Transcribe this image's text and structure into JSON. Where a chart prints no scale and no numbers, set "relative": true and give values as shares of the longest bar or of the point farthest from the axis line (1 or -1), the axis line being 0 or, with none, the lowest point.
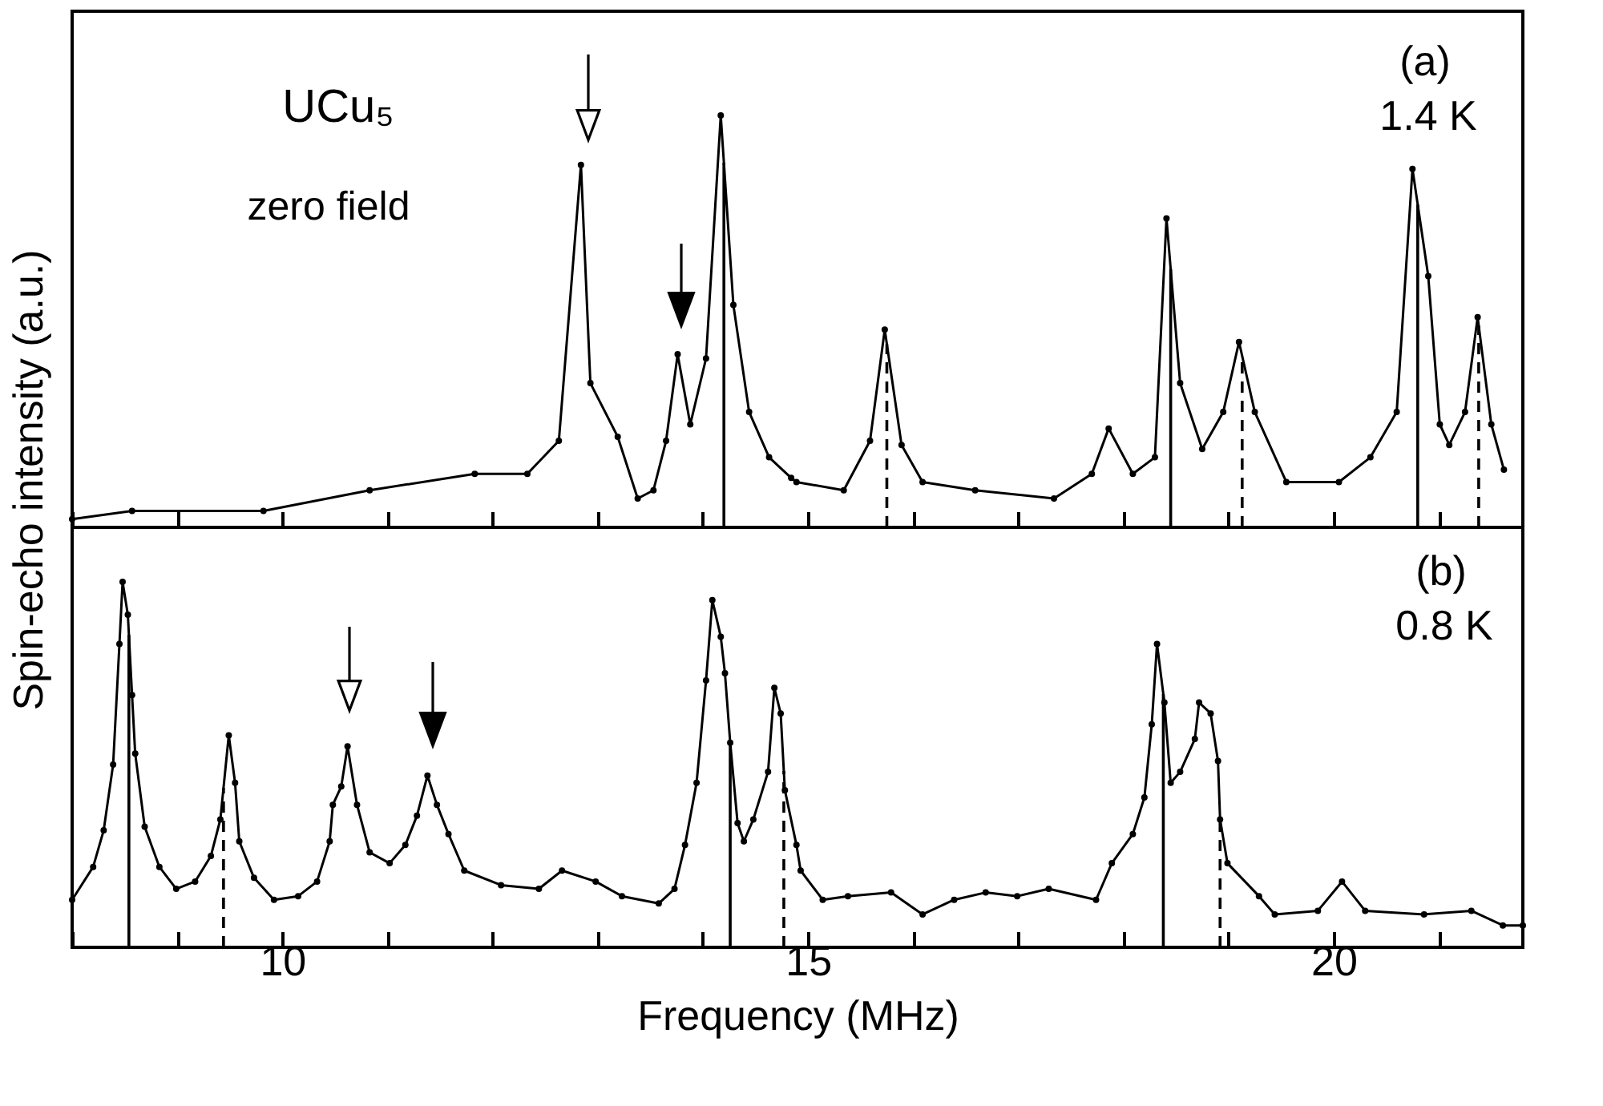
{
  "chart_data": [
    {
      "type": "line",
      "relative": true,
      "ylabel": "Spin-echo intensity (a.u.)",
      "marker": "circle",
      "tick_labels": false,
      "xlim": [
        8,
        21.8
      ],
      "xticks": [
        {
          "value": 8,
          "label": null
        },
        {
          "value": 9,
          "label": null
        },
        10,
        {
          "value": 11,
          "label": null
        },
        {
          "value": 12,
          "label": null
        },
        {
          "value": 13,
          "label": null
        },
        {
          "value": 14,
          "label": null
        },
        15,
        {
          "value": 16,
          "label": null
        },
        {
          "value": 17,
          "label": null
        },
        {
          "value": 18,
          "label": null
        },
        {
          "value": 19,
          "label": null
        },
        20,
        {
          "value": 21,
          "label": null
        }
      ],
      "annotations": [
        "UCu₅",
        "zero field",
        "(a)",
        "1.4 K"
      ],
      "series": [
        {
          "color": "#000000",
          "x": [
            8.0,
            8.57,
            9.82,
            10.83,
            11.83,
            12.33,
            12.63,
            12.84,
            12.93,
            13.19,
            13.38,
            13.53,
            13.65,
            13.76,
            13.88,
            14.03,
            14.17,
            14.29,
            14.44,
            14.63,
            14.84,
            14.89,
            15.34,
            15.59,
            15.73,
            15.89,
            16.09,
            16.59,
            17.34,
            17.7,
            17.86,
            18.09,
            18.3,
            18.41,
            18.54,
            18.75,
            18.95,
            19.1,
            19.25,
            19.55,
            20.05,
            20.35,
            20.6,
            20.75,
            20.9,
            21.01,
            21.1,
            21.25,
            21.37,
            21.5,
            21.62
          ],
          "values": [
            0.02,
            0.04,
            0.04,
            0.09,
            0.13,
            0.13,
            0.21,
            0.88,
            0.35,
            0.22,
            0.07,
            0.09,
            0.21,
            0.42,
            0.25,
            0.41,
            1.0,
            0.54,
            0.28,
            0.17,
            0.12,
            0.11,
            0.09,
            0.21,
            0.48,
            0.2,
            0.11,
            0.09,
            0.07,
            0.13,
            0.24,
            0.13,
            0.17,
            0.75,
            0.35,
            0.19,
            0.28,
            0.45,
            0.28,
            0.11,
            0.11,
            0.17,
            0.28,
            0.87,
            0.61,
            0.25,
            0.2,
            0.28,
            0.51,
            0.25,
            0.14
          ]
        }
      ],
      "ref_lines": [
        {
          "axis": "x",
          "value": 14.2,
          "line_style": "solid"
        },
        {
          "axis": "x",
          "value": 15.75,
          "line_style": "dashed"
        },
        {
          "axis": "x",
          "value": 18.45,
          "line_style": "solid"
        },
        {
          "axis": "x",
          "value": 19.13,
          "line_style": "dashed"
        },
        {
          "axis": "x",
          "value": 20.8,
          "line_style": "solid"
        },
        {
          "axis": "x",
          "value": 21.38,
          "line_style": "dashed"
        }
      ]
    },
    {
      "type": "line",
      "relative": true,
      "xlabel": "Frequency (MHz)",
      "marker": "circle",
      "tick_labels": "x",
      "xlim": [
        8,
        21.8
      ],
      "xticks": [
        {
          "value": 8,
          "label": null
        },
        {
          "value": 9,
          "label": null
        },
        10,
        {
          "value": 11,
          "label": null
        },
        {
          "value": 12,
          "label": null
        },
        {
          "value": 13,
          "label": null
        },
        {
          "value": 14,
          "label": null
        },
        15,
        {
          "value": 16,
          "label": null
        },
        {
          "value": 17,
          "label": null
        },
        {
          "value": 18,
          "label": null
        },
        {
          "value": 19,
          "label": null
        },
        20,
        {
          "value": 21,
          "label": null
        }
      ],
      "annotations": [
        "(b)",
        "0.8 K"
      ],
      "series": [
        {
          "color": "#000000",
          "x": [
            8.0,
            8.2,
            8.3,
            8.39,
            8.45,
            8.48,
            8.53,
            8.57,
            8.6,
            8.69,
            8.83,
            8.99,
            9.17,
            9.32,
            9.41,
            9.49,
            9.55,
            9.59,
            9.73,
            9.92,
            10.15,
            10.33,
            10.45,
            10.48,
            10.56,
            10.62,
            10.71,
            10.83,
            11.02,
            11.17,
            11.28,
            11.38,
            11.47,
            11.58,
            11.73,
            12.08,
            12.44,
            12.66,
            12.98,
            13.23,
            13.58,
            13.73,
            13.83,
            13.94,
            14.03,
            14.09,
            14.17,
            14.21,
            14.26,
            14.33,
            14.39,
            14.48,
            14.62,
            14.68,
            14.74,
            14.78,
            14.89,
            14.93,
            15.14,
            15.38,
            15.79,
            16.09,
            16.39,
            16.69,
            16.99,
            17.29,
            17.74,
            17.89,
            18.09,
            18.2,
            18.27,
            18.32,
            18.39,
            18.45,
            18.54,
            18.68,
            18.72,
            18.83,
            18.9,
            18.92,
            18.99,
            19.29,
            19.44,
            19.85,
            20.08,
            20.3,
            20.86,
            21.31,
            21.61,
            21.8
          ],
          "values": [
            0.13,
            0.22,
            0.32,
            0.5,
            0.83,
            1.0,
            0.91,
            0.69,
            0.53,
            0.33,
            0.22,
            0.16,
            0.18,
            0.25,
            0.35,
            0.58,
            0.45,
            0.29,
            0.19,
            0.13,
            0.14,
            0.18,
            0.29,
            0.39,
            0.44,
            0.55,
            0.39,
            0.26,
            0.23,
            0.28,
            0.36,
            0.47,
            0.39,
            0.31,
            0.21,
            0.17,
            0.16,
            0.21,
            0.18,
            0.14,
            0.12,
            0.16,
            0.28,
            0.45,
            0.73,
            0.95,
            0.85,
            0.75,
            0.56,
            0.34,
            0.29,
            0.35,
            0.48,
            0.71,
            0.64,
            0.43,
            0.28,
            0.21,
            0.13,
            0.14,
            0.15,
            0.09,
            0.13,
            0.15,
            0.14,
            0.16,
            0.13,
            0.23,
            0.31,
            0.41,
            0.61,
            0.83,
            0.67,
            0.45,
            0.48,
            0.57,
            0.67,
            0.64,
            0.51,
            0.35,
            0.23,
            0.14,
            0.09,
            0.1,
            0.18,
            0.1,
            0.09,
            0.1,
            0.06,
            0.06
          ]
        }
      ],
      "ref_lines": [
        {
          "axis": "x",
          "value": 8.54,
          "line_style": "solid"
        },
        {
          "axis": "x",
          "value": 9.44,
          "line_style": "dashed"
        },
        {
          "axis": "x",
          "value": 14.26,
          "line_style": "solid"
        },
        {
          "axis": "x",
          "value": 14.77,
          "line_style": "dashed"
        },
        {
          "axis": "x",
          "value": 18.38,
          "line_style": "solid"
        },
        {
          "axis": "x",
          "value": 18.92,
          "line_style": "dashed"
        }
      ]
    }
  ]
}
